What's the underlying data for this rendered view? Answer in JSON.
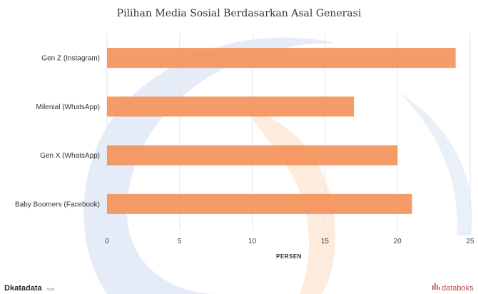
{
  "chart_data": {
    "type": "bar",
    "orientation": "horizontal",
    "title": "Pilihan Media Sosial Berdasarkan Asal Generasi",
    "categories": [
      "Gen Z (Instagram)",
      "Milenial (WhatsApp)",
      "Gen X (WhatsApp)",
      "Baby Boomers (Facebook)"
    ],
    "series": [
      {
        "values": [
          24,
          17,
          20,
          21
        ]
      }
    ],
    "xlabel": "PERSEN",
    "ylabel": "",
    "xlim": [
      0,
      25
    ],
    "xticks": [
      0,
      5,
      10,
      15,
      20,
      25
    ],
    "grid": true,
    "bar_color": "#f4935a"
  },
  "branding": {
    "left_mark": "D",
    "left_name": "katadata",
    "left_suffix": ".co.id",
    "right_name": "databoks"
  },
  "colors": {
    "watermark_blue": "#dce6f4",
    "watermark_orange": "#fde6d6",
    "grid": "#e6e6e6",
    "brand_red": "#c0504d"
  }
}
